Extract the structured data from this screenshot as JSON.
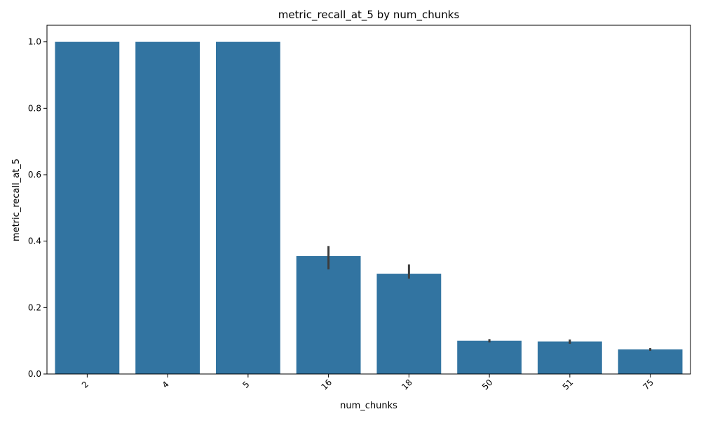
{
  "chart_data": {
    "type": "bar",
    "title": "metric_recall_at_5 by num_chunks",
    "xlabel": "num_chunks",
    "ylabel": "metric_recall_at_5",
    "categories": [
      "2",
      "4",
      "5",
      "16",
      "18",
      "50",
      "51",
      "75"
    ],
    "values": [
      1.0,
      1.0,
      1.0,
      0.355,
      0.302,
      0.1,
      0.098,
      0.074
    ],
    "error_low": [
      1.0,
      1.0,
      1.0,
      0.315,
      0.287,
      0.095,
      0.091,
      0.07
    ],
    "error_high": [
      1.0,
      1.0,
      1.0,
      0.385,
      0.33,
      0.105,
      0.104,
      0.078
    ],
    "ylim": [
      0,
      1.05
    ],
    "yticks": [
      0.0,
      0.2,
      0.4,
      0.6,
      0.8,
      1.0
    ],
    "ytick_labels": [
      "0.0",
      "0.2",
      "0.4",
      "0.6",
      "0.8",
      "1.0"
    ],
    "grid": false,
    "bar_color": "#3274a1",
    "errorbar_color": "#3d3d3d"
  }
}
